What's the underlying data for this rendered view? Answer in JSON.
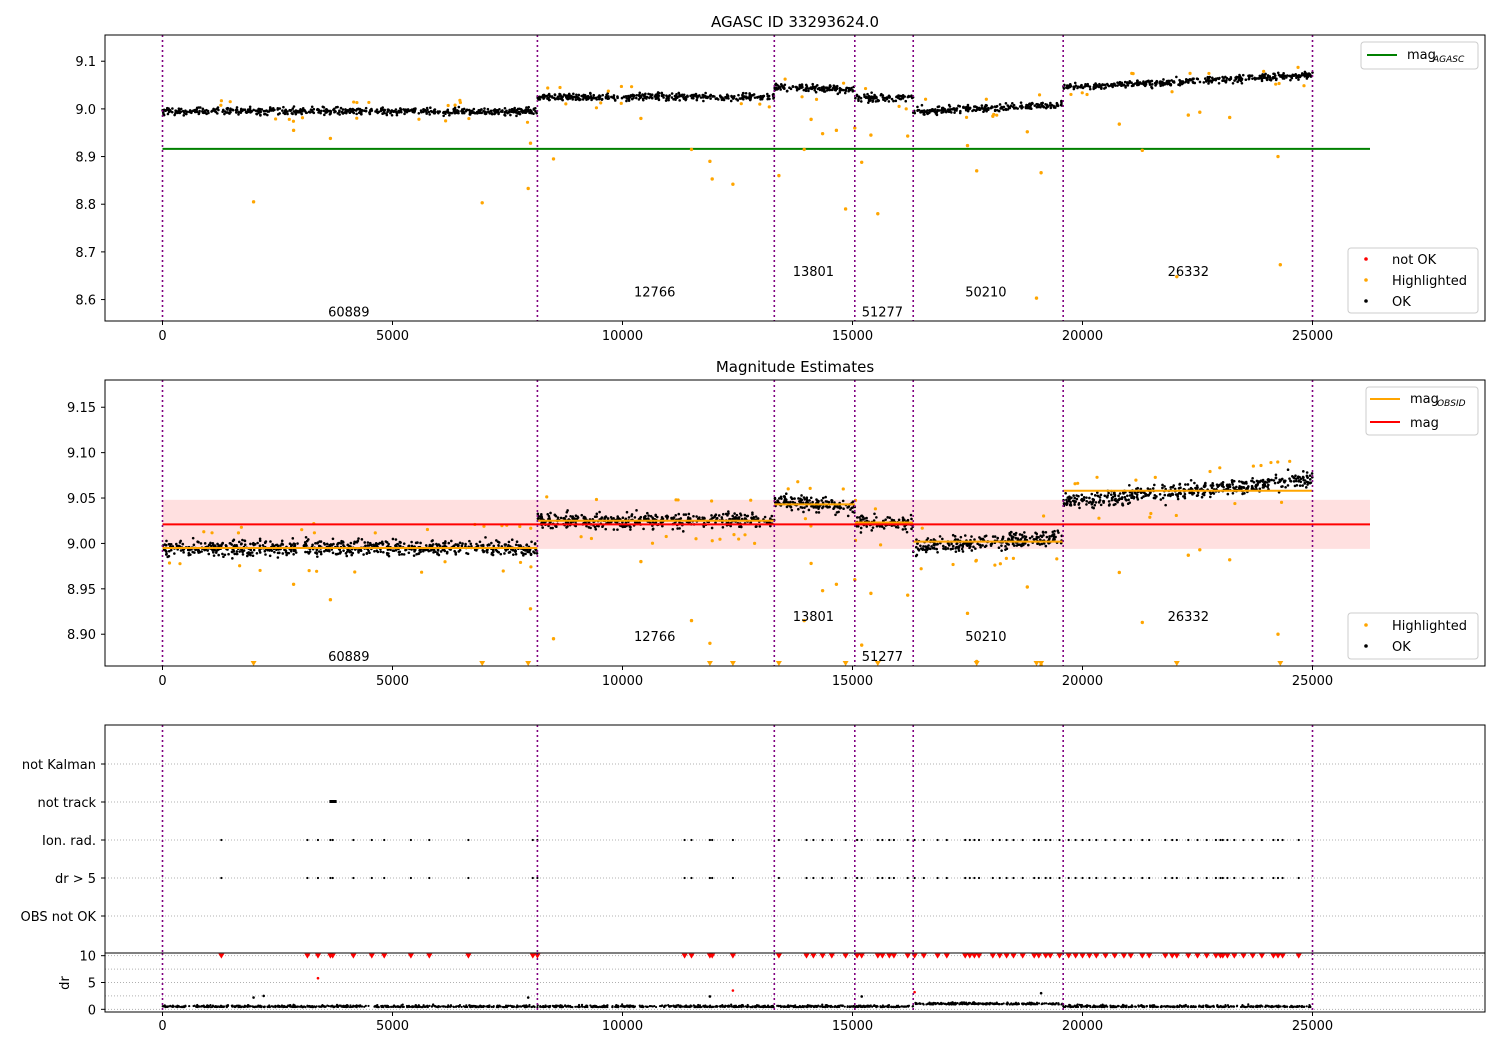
{
  "colors": {
    "ok": "#000000",
    "highlighted": "#ffa500",
    "not_ok": "#ff0000",
    "mag_agasc": "#008000",
    "mag": "#ff0000",
    "mag_obsid": "#ffa500",
    "band": "#ffcccc",
    "obsid_line": "#800080"
  },
  "obsid_boundaries": [
    0,
    8150,
    13300,
    15050,
    16320,
    19580,
    25000
  ],
  "obsids": [
    {
      "label": "60889",
      "x": 4050,
      "y1": 8.575,
      "y2": 8.876
    },
    {
      "label": "12766",
      "x": 10700,
      "y1": 8.617,
      "y2": 8.898
    },
    {
      "label": "13801",
      "x": 14150,
      "y1": 8.66,
      "y2": 8.92
    },
    {
      "label": "51277",
      "x": 15650,
      "y1": 8.575,
      "y2": 8.876
    },
    {
      "label": "50210",
      "x": 17900,
      "y1": 8.617,
      "y2": 8.898
    },
    {
      "label": "26332",
      "x": 22300,
      "y1": 8.66,
      "y2": 8.92
    }
  ],
  "chart_data": [
    {
      "type": "scatter",
      "title": "AGASC ID 33293624.0",
      "xlim": [
        -1250,
        28750
      ],
      "ylim": [
        8.555,
        9.155
      ],
      "xticks": [
        "0",
        "5000",
        "10000",
        "15000",
        "20000",
        "25000"
      ],
      "yticks": [
        "8.6",
        "8.7",
        "8.8",
        "8.9",
        "9.0",
        "9.1"
      ],
      "legend_top": {
        "placement": "top-right",
        "entries": [
          {
            "label": "mag",
            "sub": "AGASC"
          }
        ]
      },
      "legend_bottom": {
        "placement": "bottom-right",
        "entries": [
          "not OK",
          "Highlighted",
          "OK"
        ]
      },
      "mag_agasc": 8.916,
      "segments": [
        {
          "x0": 0,
          "x1": 8150,
          "mean": 8.995,
          "slope": 0.0
        },
        {
          "x0": 8150,
          "x1": 13300,
          "mean": 9.025,
          "slope": 0.0
        },
        {
          "x0": 13300,
          "x1": 15050,
          "mean": 9.043,
          "slope": -0.006
        },
        {
          "x0": 15050,
          "x1": 16320,
          "mean": 9.023,
          "slope": 0.0
        },
        {
          "x0": 16320,
          "x1": 19580,
          "mean": 9.002,
          "slope": 0.012
        },
        {
          "x0": 19580,
          "x1": 25000,
          "mean": 9.058,
          "slope": 0.026
        }
      ],
      "highlighted_outliers": [
        [
          1980,
          8.805
        ],
        [
          2850,
          8.955
        ],
        [
          3650,
          8.938
        ],
        [
          6950,
          8.803
        ],
        [
          7950,
          8.833
        ],
        [
          8000,
          8.928
        ],
        [
          8500,
          8.895
        ],
        [
          10400,
          8.98
        ],
        [
          11500,
          8.915
        ],
        [
          11900,
          8.89
        ],
        [
          11950,
          8.853
        ],
        [
          12400,
          8.842
        ],
        [
          13400,
          8.86
        ],
        [
          13950,
          8.915
        ],
        [
          14100,
          8.978
        ],
        [
          14350,
          8.948
        ],
        [
          14650,
          8.955
        ],
        [
          14850,
          8.79
        ],
        [
          15050,
          8.96
        ],
        [
          15200,
          8.888
        ],
        [
          15400,
          8.945
        ],
        [
          15550,
          8.78
        ],
        [
          16200,
          8.943
        ],
        [
          17500,
          8.923
        ],
        [
          17700,
          8.87
        ],
        [
          18800,
          8.952
        ],
        [
          19000,
          8.603
        ],
        [
          19100,
          8.866
        ],
        [
          20800,
          8.968
        ],
        [
          21300,
          8.913
        ],
        [
          22050,
          8.648
        ],
        [
          22300,
          8.987
        ],
        [
          22550,
          8.993
        ],
        [
          23200,
          8.982
        ],
        [
          24250,
          8.9
        ],
        [
          24300,
          8.673
        ]
      ]
    },
    {
      "type": "scatter",
      "title": "Magnitude Estimates",
      "xlim": [
        -1250,
        28750
      ],
      "ylim": [
        8.865,
        9.18
      ],
      "xticks": [
        "0",
        "5000",
        "10000",
        "15000",
        "20000",
        "25000"
      ],
      "yticks": [
        "8.90",
        "8.95",
        "9.00",
        "9.05",
        "9.10",
        "9.15"
      ],
      "legend_top": {
        "placement": "top-right",
        "entries": [
          {
            "label": "mag",
            "sub": "OBSID"
          },
          {
            "label": "mag",
            "sub": ""
          }
        ]
      },
      "legend_bottom": {
        "placement": "bottom-right",
        "entries": [
          "Highlighted",
          "OK"
        ]
      },
      "mag": 9.021,
      "mag_band": [
        8.994,
        9.048
      ],
      "clipped_markers_x": [
        1980,
        6950,
        7950,
        11900,
        12400,
        13400,
        14850,
        15550,
        17700,
        19000,
        19100,
        22050,
        24300
      ]
    },
    {
      "type": "scatter",
      "title": "",
      "xlim": [
        -1250,
        28750
      ],
      "categories": [
        "not Kalman",
        "not track",
        "Ion. rad.",
        "dr > 5",
        "OBS not OK"
      ],
      "not_track_x": [
        3650,
        3720
      ],
      "flag_x": [
        1280,
        3150,
        3380,
        3650,
        3700,
        4150,
        4550,
        4820,
        5400,
        5800,
        6650,
        8050,
        8150,
        11350,
        11500,
        11900,
        11950,
        12400,
        13400,
        14000,
        14150,
        14350,
        14550,
        14850,
        15100,
        15200,
        15550,
        15650,
        15800,
        15900,
        16200,
        16350,
        16550,
        16850,
        17050,
        17450,
        17550,
        17650,
        17750,
        18050,
        18200,
        18350,
        18500,
        18700,
        18950,
        19050,
        19200,
        19300,
        19500,
        19700,
        19850,
        20000,
        20150,
        20300,
        20500,
        20700,
        20900,
        21050,
        21300,
        21450,
        21800,
        21950,
        22050,
        22300,
        22500,
        22700,
        22900,
        23000,
        23050,
        23150,
        23300,
        23500,
        23700,
        23900,
        24150,
        24250,
        24350,
        24700
      ]
    },
    {
      "type": "scatter",
      "title": "",
      "xlim": [
        -1250,
        28750
      ],
      "ylim": [
        -0.5,
        10.5
      ],
      "ylabel": "dr",
      "xticks": [
        "0",
        "5000",
        "10000",
        "15000",
        "20000",
        "25000"
      ],
      "yticks": [
        "0",
        "5",
        "10"
      ],
      "clip_value": 10,
      "dr_outliers": [
        [
          1980,
          2.2
        ],
        [
          2200,
          2.5
        ],
        [
          3380,
          5.8
        ],
        [
          7950,
          2.2
        ],
        [
          11900,
          2.4
        ],
        [
          12400,
          3.5
        ],
        [
          15200,
          2.4
        ],
        [
          16350,
          3.2
        ],
        [
          19100,
          3.0
        ]
      ]
    }
  ]
}
